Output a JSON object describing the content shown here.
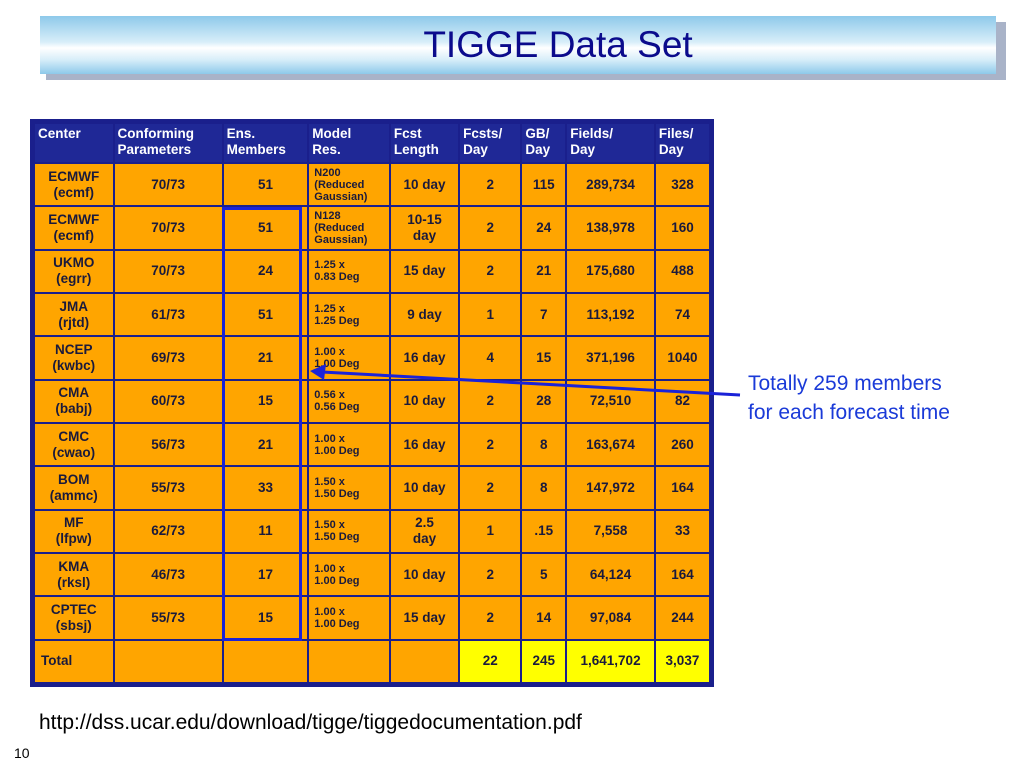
{
  "slide": {
    "title": "TIGGE Data Set",
    "annotation_line1": "Totally 259 members",
    "annotation_line2": "for each forecast time",
    "url": "http://dss.ucar.edu/download/tigge/tiggedocumentation.pdf",
    "page_number": "10"
  },
  "table": {
    "headers": [
      [
        "Center",
        ""
      ],
      [
        "Conforming",
        "Parameters"
      ],
      [
        "Ens.",
        "Members"
      ],
      [
        "Model",
        "Res."
      ],
      [
        "Fcst",
        "Length"
      ],
      [
        "Fcsts/",
        "Day"
      ],
      [
        "GB/",
        "Day"
      ],
      [
        "Fields/",
        "Day"
      ],
      [
        "Files/",
        "Day"
      ]
    ],
    "rows": [
      {
        "center": [
          "ECMWF",
          "(ecmf)"
        ],
        "params": "70/73",
        "members": "51",
        "res": [
          "N200",
          "(Reduced",
          "Gaussian)"
        ],
        "length": [
          "10 day"
        ],
        "fcsts": "2",
        "gb": "115",
        "fields": "289,734",
        "files": "328"
      },
      {
        "center": [
          "ECMWF",
          "(ecmf)"
        ],
        "params": "70/73",
        "members": "51",
        "res": [
          "N128",
          "(Reduced",
          "Gaussian)"
        ],
        "length": [
          "10-15",
          "day"
        ],
        "fcsts": "2",
        "gb": "24",
        "fields": "138,978",
        "files": "160"
      },
      {
        "center": [
          "UKMO",
          "(egrr)"
        ],
        "params": "70/73",
        "members": "24",
        "res": [
          "1.25 x",
          "0.83 Deg"
        ],
        "length": [
          "15 day"
        ],
        "fcsts": "2",
        "gb": "21",
        "fields": "175,680",
        "files": "488"
      },
      {
        "center": [
          "JMA",
          "(rjtd)"
        ],
        "params": "61/73",
        "members": "51",
        "res": [
          "1.25 x",
          "1.25 Deg"
        ],
        "length": [
          "9 day"
        ],
        "fcsts": "1",
        "gb": "7",
        "fields": "113,192",
        "files": "74"
      },
      {
        "center": [
          "NCEP",
          "(kwbc)"
        ],
        "params": "69/73",
        "members": "21",
        "res": [
          "1.00 x",
          "1.00 Deg"
        ],
        "length": [
          "16 day"
        ],
        "fcsts": "4",
        "gb": "15",
        "fields": "371,196",
        "files": "1040"
      },
      {
        "center": [
          "CMA",
          "(babj)"
        ],
        "params": "60/73",
        "members": "15",
        "res": [
          "0.56 x",
          "0.56 Deg"
        ],
        "length": [
          "10 day"
        ],
        "fcsts": "2",
        "gb": "28",
        "fields": "72,510",
        "files": "82"
      },
      {
        "center": [
          "CMC",
          "(cwao)"
        ],
        "params": "56/73",
        "members": "21",
        "res": [
          "1.00 x",
          "1.00 Deg"
        ],
        "length": [
          "16 day"
        ],
        "fcsts": "2",
        "gb": "8",
        "fields": "163,674",
        "files": "260"
      },
      {
        "center": [
          "BOM",
          "(ammc)"
        ],
        "params": "55/73",
        "members": "33",
        "res": [
          "1.50 x",
          "1.50 Deg"
        ],
        "length": [
          "10 day"
        ],
        "fcsts": "2",
        "gb": "8",
        "fields": "147,972",
        "files": "164"
      },
      {
        "center": [
          "MF",
          "(lfpw)"
        ],
        "params": "62/73",
        "members": "11",
        "res": [
          "1.50 x",
          "1.50 Deg"
        ],
        "length": [
          "2.5",
          "day"
        ],
        "fcsts": "1",
        "gb": ".15",
        "fields": "7,558",
        "files": "33"
      },
      {
        "center": [
          "KMA",
          "(rksl)"
        ],
        "params": "46/73",
        "members": "17",
        "res": [
          "1.00 x",
          "1.00 Deg"
        ],
        "length": [
          "10 day"
        ],
        "fcsts": "2",
        "gb": "5",
        "fields": "64,124",
        "files": "164"
      },
      {
        "center": [
          "CPTEC",
          "(sbsj)"
        ],
        "params": "55/73",
        "members": "15",
        "res": [
          "1.00 x",
          "1.00 Deg"
        ],
        "length": [
          "15 day"
        ],
        "fcsts": "2",
        "gb": "14",
        "fields": "97,084",
        "files": "244"
      }
    ],
    "total": {
      "label": "Total",
      "fcsts": "22",
      "gb": "245",
      "fields": "1,641,702",
      "files": "3,037"
    }
  },
  "colors": {
    "title_text": "#0b0b8c",
    "header_bg": "#1f2896",
    "cell_bg": "#ffa500",
    "total_highlight": "#ffff00",
    "annotation": "#1a3ad8"
  }
}
